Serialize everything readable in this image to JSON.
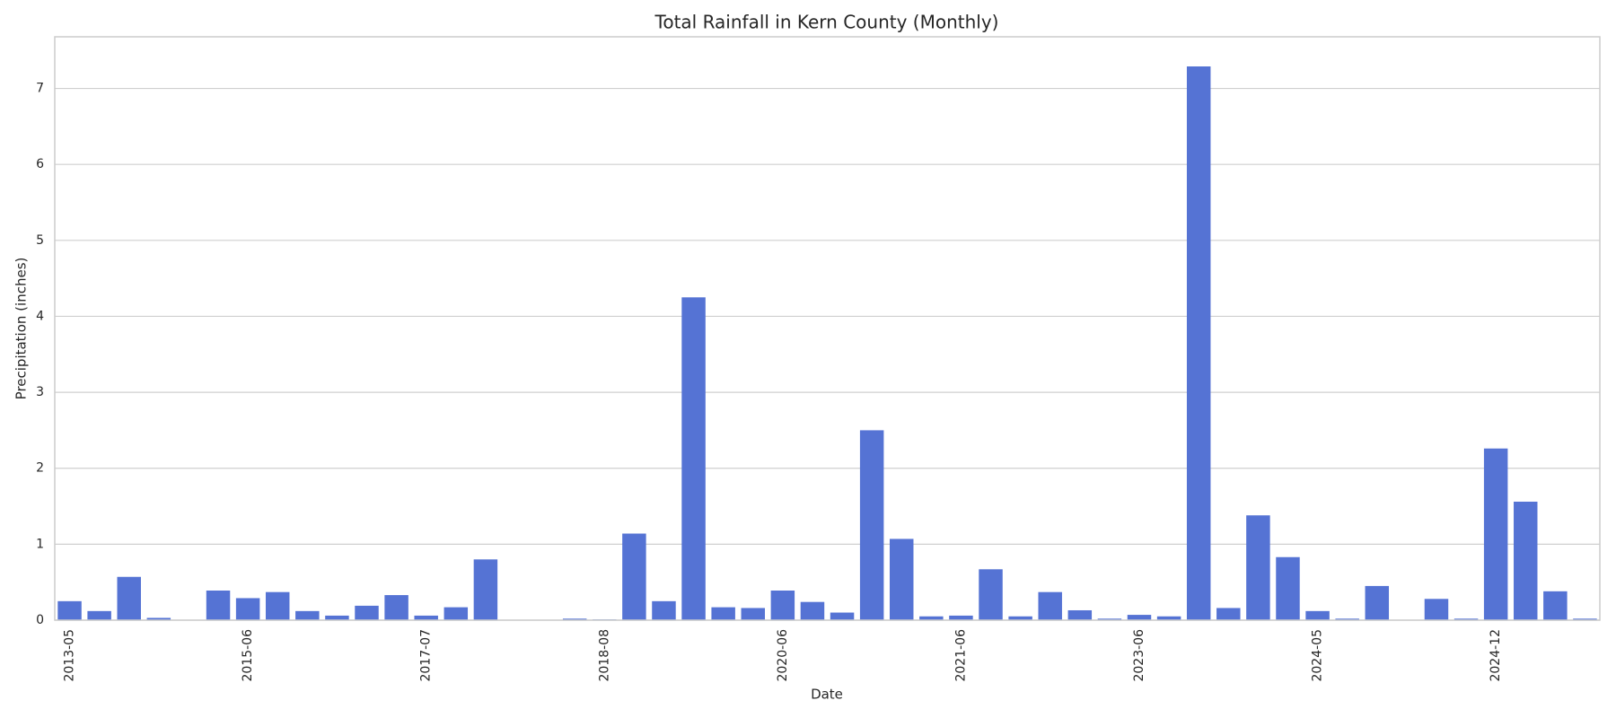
{
  "chart_data": {
    "type": "bar",
    "title": "Total Rainfall in Kern County (Monthly)",
    "x_label": "Date",
    "y_label": "Precipitation (inches)",
    "categories": [
      "2013-05",
      null,
      null,
      null,
      null,
      null,
      "2015-06",
      null,
      null,
      null,
      null,
      null,
      "2017-07",
      null,
      null,
      null,
      null,
      null,
      "2018-08",
      null,
      null,
      null,
      null,
      null,
      "2020-06",
      null,
      null,
      null,
      null,
      null,
      "2021-06",
      null,
      null,
      null,
      null,
      null,
      "2023-06",
      null,
      null,
      null,
      null,
      null,
      "2024-05",
      null,
      null,
      null,
      null,
      null,
      "2024-12",
      null,
      null,
      null
    ],
    "values": [
      0.25,
      0.12,
      0.57,
      0.03,
      0,
      0.39,
      0.29,
      0.37,
      0.12,
      0.06,
      0.19,
      0.33,
      0.06,
      0.17,
      0.8,
      0,
      0,
      0.02,
      0.01,
      1.14,
      0.25,
      4.25,
      0.17,
      0.16,
      0.39,
      0.24,
      0.1,
      2.5,
      1.07,
      0.05,
      0.06,
      0.67,
      0.05,
      0.37,
      0.13,
      0.02,
      0.07,
      0.05,
      7.29,
      0.16,
      1.38,
      0.83,
      0.12,
      0.02,
      0.45,
      0,
      0.28,
      0.02,
      2.26,
      1.56,
      0.38,
      0.02
    ],
    "color": "#5573d4",
    "ylim": [
      0,
      7.68
    ],
    "yticks": [
      0,
      1,
      2,
      3,
      4,
      5,
      6,
      7
    ],
    "grid": true
  }
}
